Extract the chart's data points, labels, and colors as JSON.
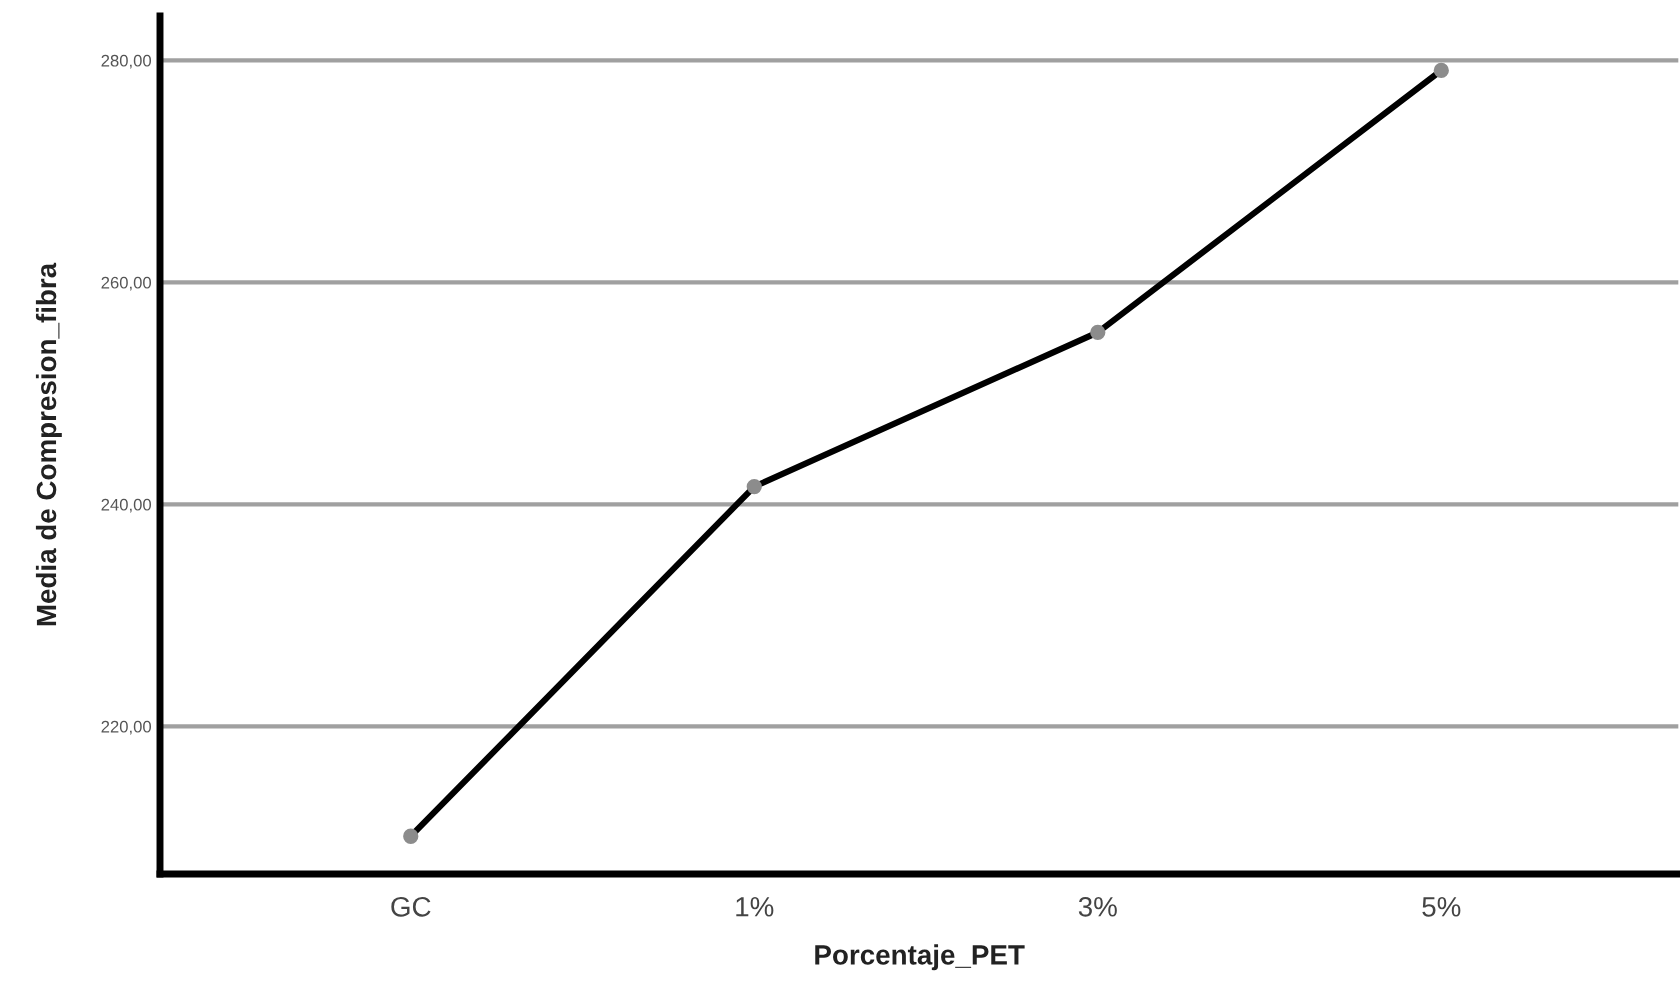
{
  "chart_data": {
    "type": "line",
    "xlabel": "Porcentaje_PET",
    "ylabel": "Media de Compresion_fibra",
    "categories": [
      "GC",
      "1%",
      "3%",
      "5%"
    ],
    "series": [
      {
        "color": "#000000",
        "values": [
          210.1,
          241.6,
          255.5,
          279.1
        ]
      }
    ],
    "marker": "circle",
    "line_style": "solid",
    "ylim": [
      206.7,
      284
    ],
    "yticks": [
      {
        "value": 220,
        "label": "220,00"
      },
      {
        "value": 240,
        "label": "240,00"
      },
      {
        "value": 260,
        "label": "260,00"
      },
      {
        "value": 280,
        "label": "280,00"
      }
    ],
    "grid": "y"
  }
}
